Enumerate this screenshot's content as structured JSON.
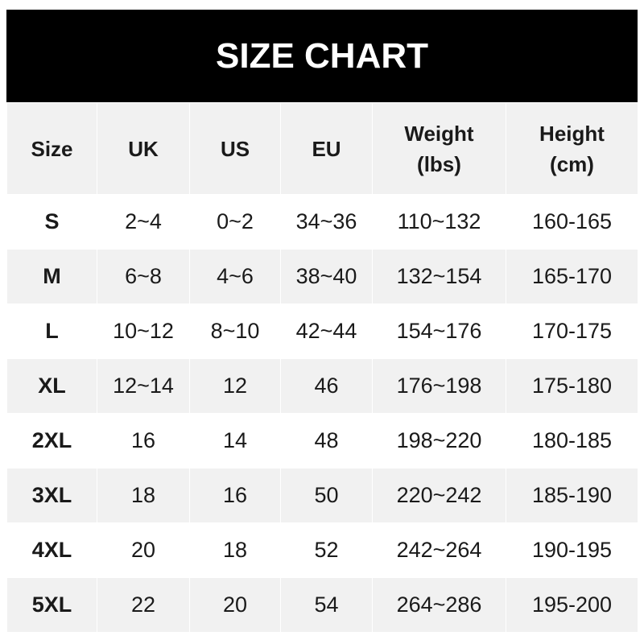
{
  "title": "SIZE CHART",
  "headers": [
    "Size",
    "UK",
    "US",
    "EU",
    "Weight\n(lbs)",
    "Height\n(cm)"
  ],
  "header_lines": [
    [
      "Size"
    ],
    [
      "UK"
    ],
    [
      "US"
    ],
    [
      "EU"
    ],
    [
      "Weight",
      "(lbs)"
    ],
    [
      "Height",
      "(cm)"
    ]
  ],
  "rows": [
    [
      "S",
      "2~4",
      "0~2",
      "34~36",
      "110~132",
      "160-165"
    ],
    [
      "M",
      "6~8",
      "4~6",
      "38~40",
      "132~154",
      "165-170"
    ],
    [
      "L",
      "10~12",
      "8~10",
      "42~44",
      "154~176",
      "170-175"
    ],
    [
      "XL",
      "12~14",
      "12",
      "46",
      "176~198",
      "175-180"
    ],
    [
      "2XL",
      "16",
      "14",
      "48",
      "198~220",
      "180-185"
    ],
    [
      "3XL",
      "18",
      "16",
      "50",
      "220~242",
      "185-190"
    ],
    [
      "4XL",
      "20",
      "18",
      "52",
      "242~264",
      "190-195"
    ],
    [
      "5XL",
      "22",
      "20",
      "54",
      "264~286",
      "195-200"
    ]
  ]
}
